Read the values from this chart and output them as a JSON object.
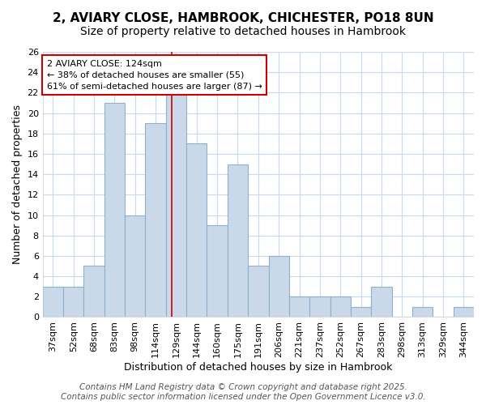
{
  "title_line1": "2, AVIARY CLOSE, HAMBROOK, CHICHESTER, PO18 8UN",
  "title_line2": "Size of property relative to detached houses in Hambrook",
  "xlabel": "Distribution of detached houses by size in Hambrook",
  "ylabel": "Number of detached properties",
  "bar_labels": [
    "37sqm",
    "52sqm",
    "68sqm",
    "83sqm",
    "98sqm",
    "114sqm",
    "129sqm",
    "144sqm",
    "160sqm",
    "175sqm",
    "191sqm",
    "206sqm",
    "221sqm",
    "237sqm",
    "252sqm",
    "267sqm",
    "283sqm",
    "298sqm",
    "313sqm",
    "329sqm",
    "344sqm"
  ],
  "bar_values": [
    3,
    3,
    5,
    21,
    10,
    19,
    22,
    17,
    9,
    15,
    5,
    6,
    2,
    2,
    2,
    1,
    3,
    0,
    1,
    0,
    1
  ],
  "bar_color": "#c9d9ea",
  "bar_edge_color": "#8fb0cc",
  "red_line_color": "#cc0000",
  "property_line_x": 5.8,
  "annotation_text": "2 AVIARY CLOSE: 124sqm\n← 38% of detached houses are smaller (55)\n61% of semi-detached houses are larger (87) →",
  "annotation_box_color": "#ffffff",
  "annotation_box_edge_color": "#cc0000",
  "ylim": [
    0,
    26
  ],
  "yticks": [
    0,
    2,
    4,
    6,
    8,
    10,
    12,
    14,
    16,
    18,
    20,
    22,
    24,
    26
  ],
  "footer_text": "Contains HM Land Registry data © Crown copyright and database right 2025.\nContains public sector information licensed under the Open Government Licence v3.0.",
  "bg_color": "#ffffff",
  "grid_color": "#c8d8ee",
  "title_fontsize": 11,
  "subtitle_fontsize": 10,
  "tick_fontsize": 8,
  "label_fontsize": 9,
  "footer_fontsize": 7.5
}
